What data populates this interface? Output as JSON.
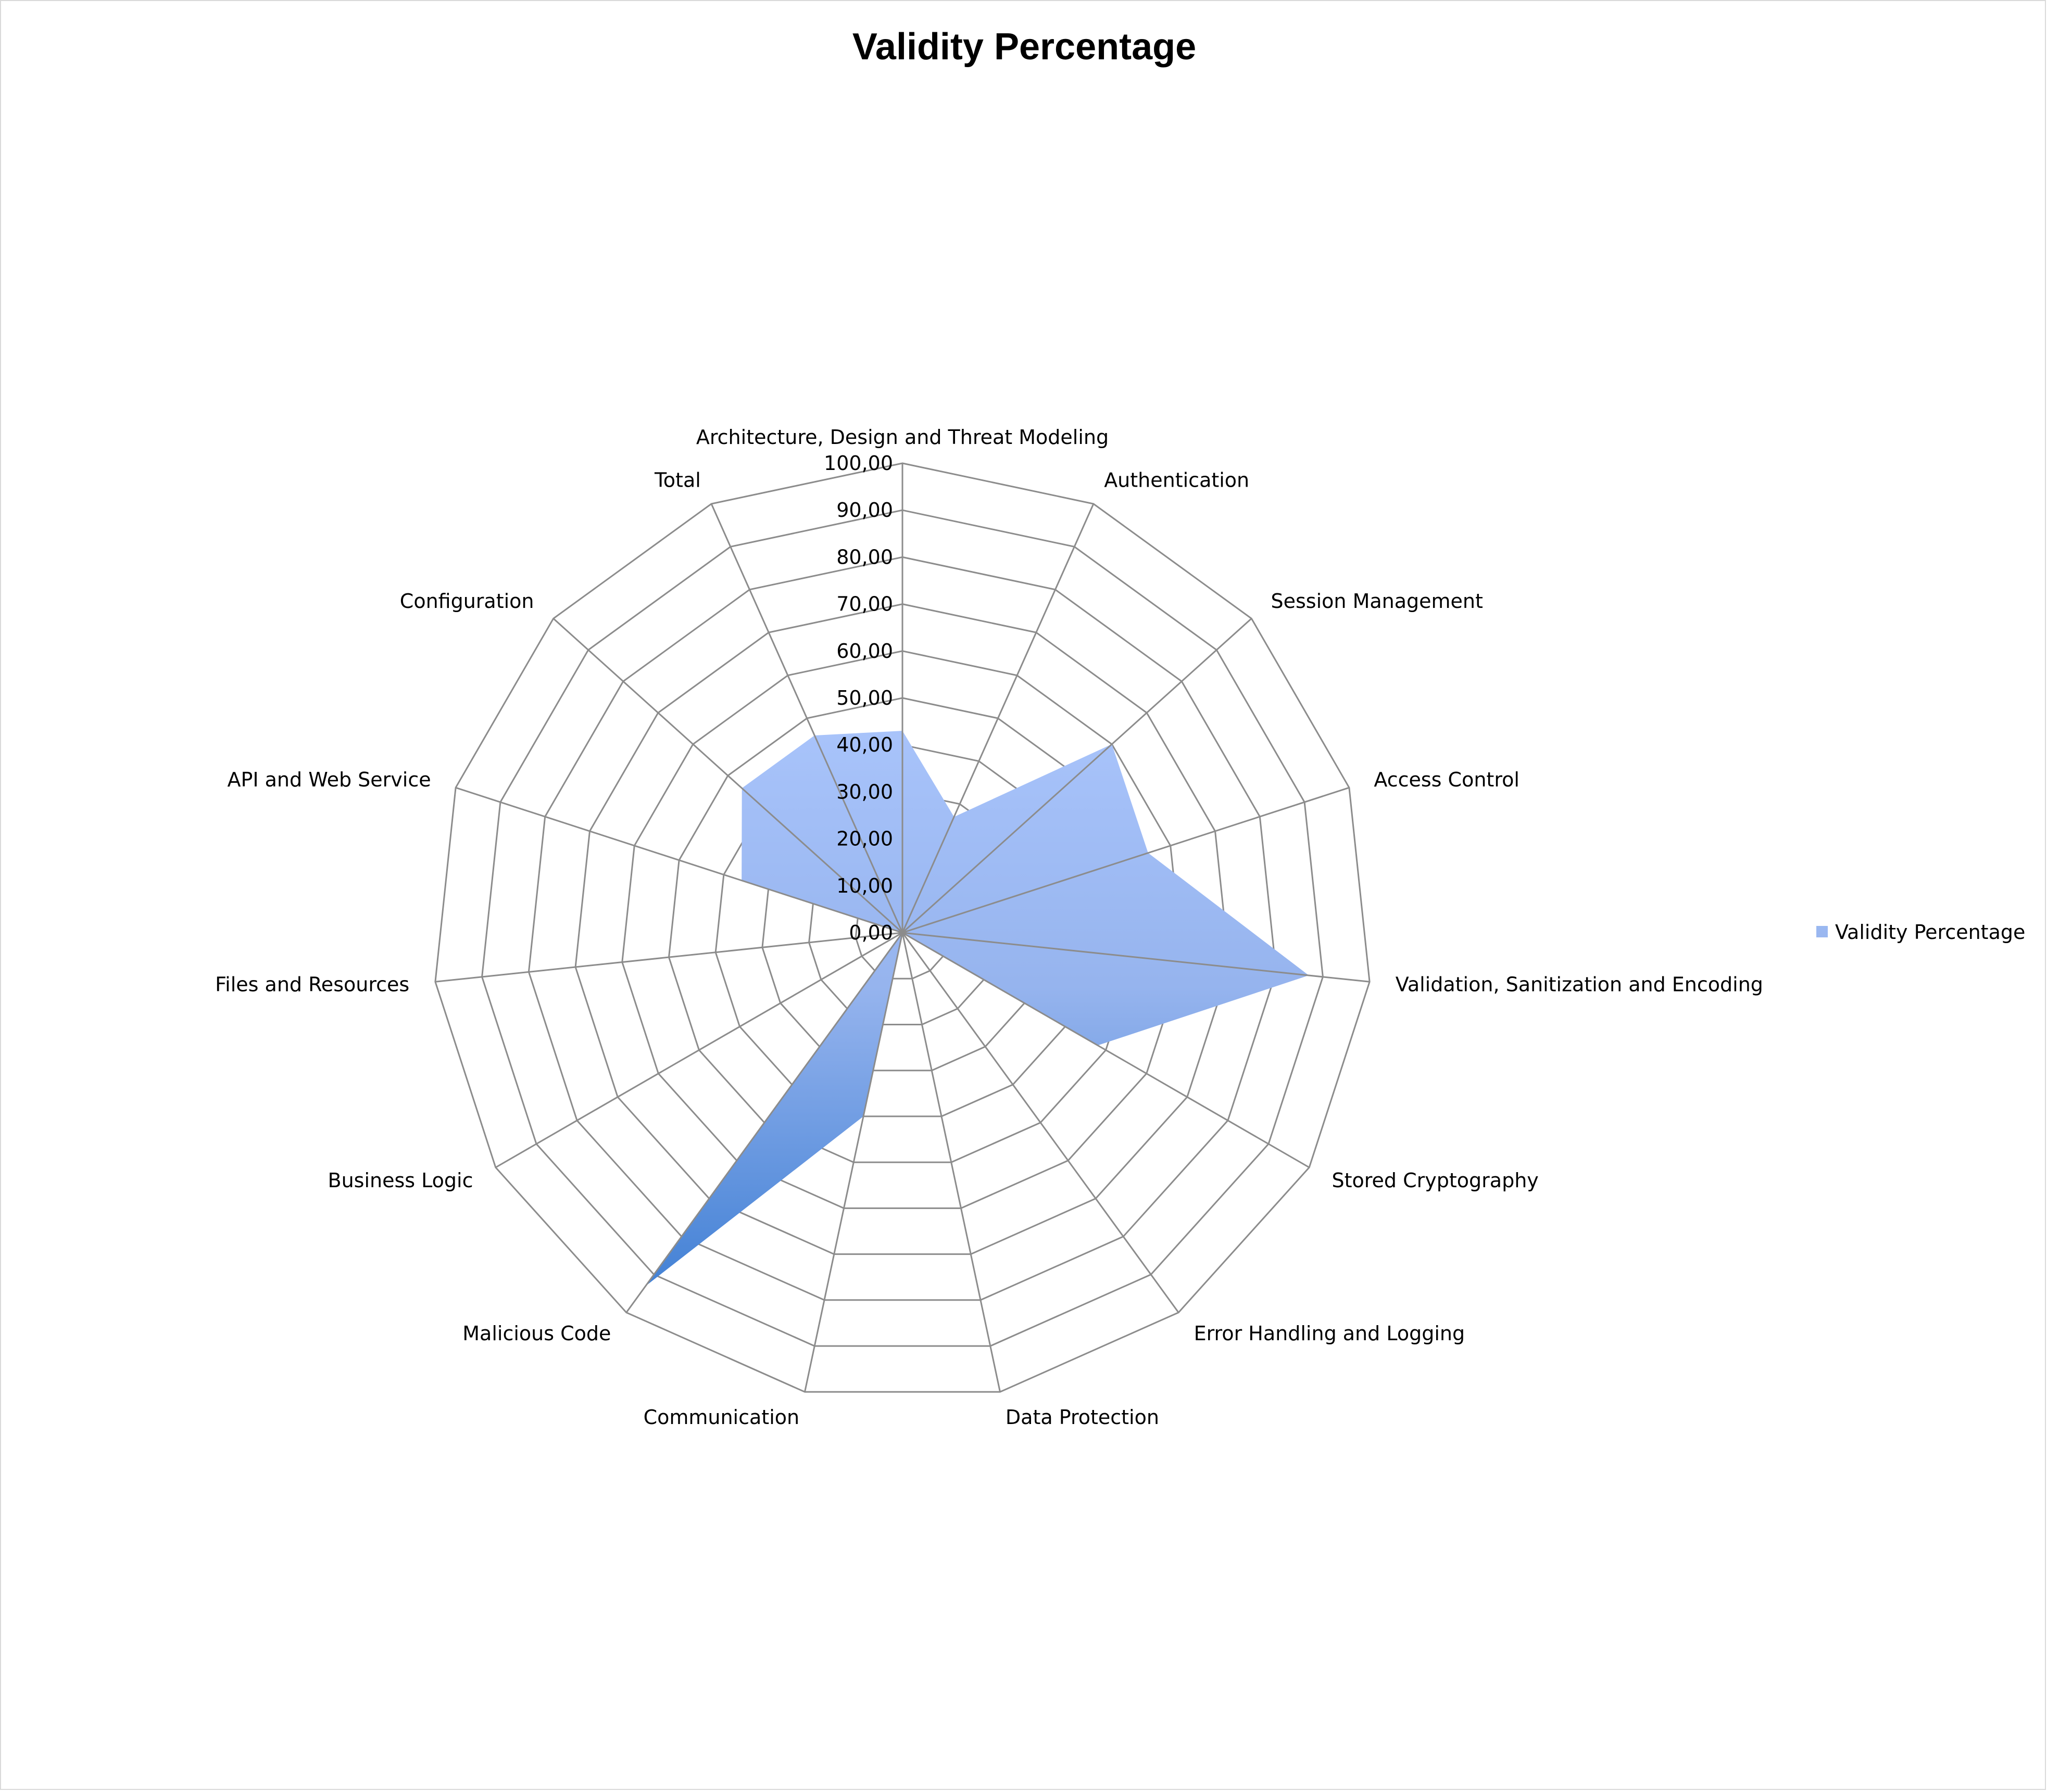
{
  "chart_data": {
    "type": "radar",
    "title": "Validity Percentage",
    "categories": [
      "Architecture, Design and Threat Modeling",
      "Authentication",
      "Session Management",
      "Access Control",
      "Validation, Sanitization and Encoding",
      "Stored Cryptography",
      "Error Handling and Logging",
      "Data Protection",
      "Communication",
      "Malicious Code",
      "Business Logic",
      "Files and Resources",
      "API and Web Service",
      "Configuration",
      "Total"
    ],
    "series": [
      {
        "name": "Validity Percentage",
        "values": [
          43,
          27,
          60,
          55,
          87,
          48,
          0,
          0,
          40,
          93,
          0,
          0,
          36,
          46,
          46
        ]
      }
    ],
    "tick_labels": [
      "0,00",
      "10,00",
      "20,00",
      "30,00",
      "40,00",
      "50,00",
      "60,00",
      "70,00",
      "80,00",
      "90,00",
      "100,00"
    ],
    "rlim": [
      0,
      100
    ],
    "grid": true,
    "legend": "right",
    "colors": {
      "fill_light": "#a9c4fb",
      "fill_dark": "#3c7dd3",
      "grid": "#8c8c8c"
    }
  }
}
